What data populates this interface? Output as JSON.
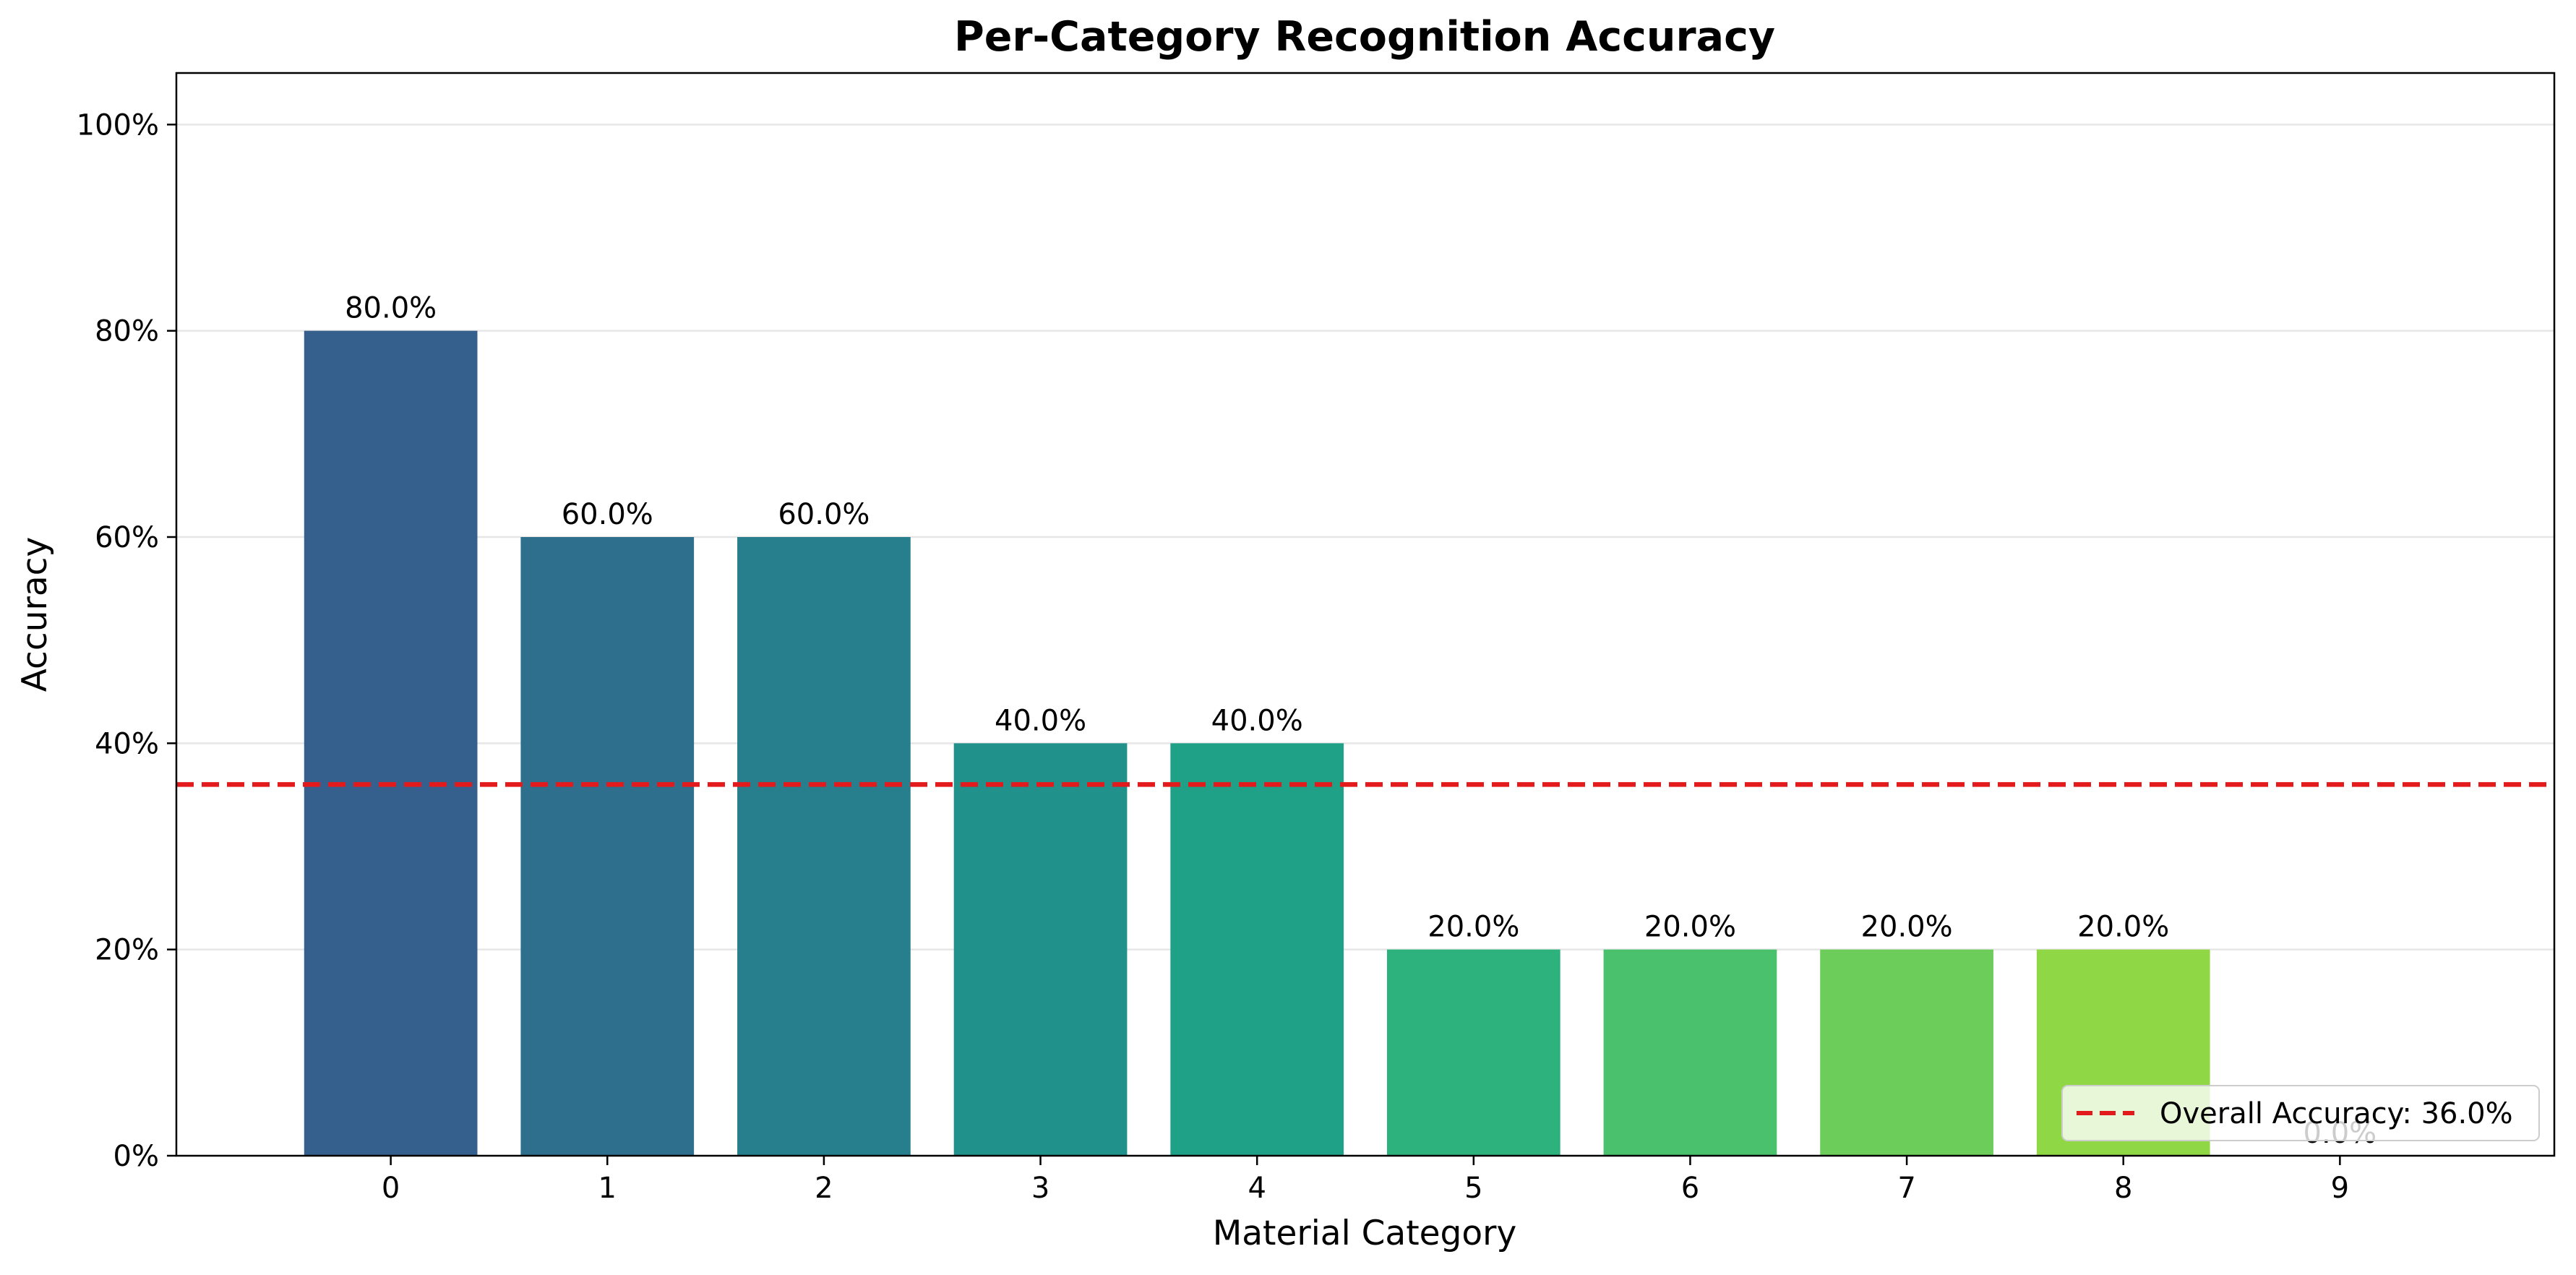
{
  "chart_data": {
    "type": "bar",
    "title": "Per-Category Recognition Accuracy",
    "xlabel": "Material Category",
    "ylabel": "Accuracy",
    "categories": [
      "0",
      "1",
      "2",
      "3",
      "4",
      "5",
      "6",
      "7",
      "8",
      "9"
    ],
    "values": [
      0.8,
      0.6,
      0.6,
      0.4,
      0.4,
      0.2,
      0.2,
      0.2,
      0.2,
      0.0
    ],
    "value_labels": [
      "80.0%",
      "60.0%",
      "60.0%",
      "40.0%",
      "40.0%",
      "20.0%",
      "20.0%",
      "20.0%",
      "20.0%",
      "0.0%"
    ],
    "bar_colors": [
      "#355f8d",
      "#2e6f8e",
      "#277f8e",
      "#21918c",
      "#1fa187",
      "#2db27d",
      "#4ac16d",
      "#6ccd5a",
      "#8fd744",
      "#b5de2b"
    ],
    "ylim": [
      0,
      1.05
    ],
    "yticks": [
      0,
      0.2,
      0.4,
      0.6,
      0.8,
      1.0
    ],
    "ytick_labels": [
      "0%",
      "20%",
      "40%",
      "60%",
      "80%",
      "100%"
    ],
    "grid": "y",
    "grid_color": "#e6e6e6",
    "reference_line": {
      "value": 0.36,
      "label": "Overall Accuracy: 36.0%",
      "color": "#e31a1c",
      "style": "dashed"
    },
    "legend_position": "lower-right"
  }
}
